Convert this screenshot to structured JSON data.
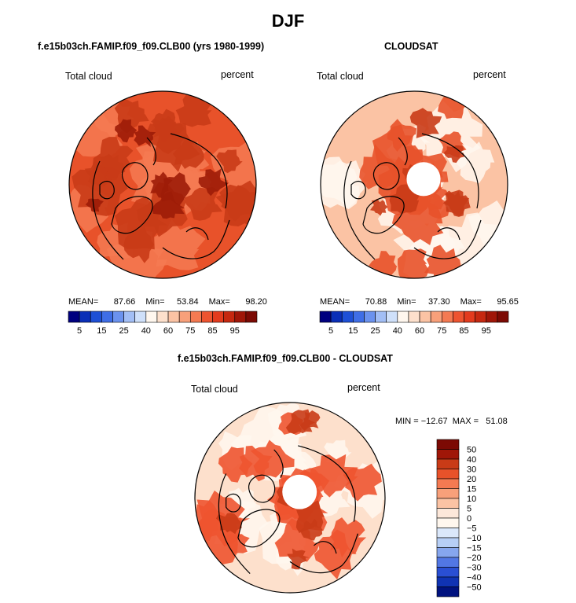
{
  "page_title": "DJF",
  "chart_data": [
    {
      "type": "polar-contour-map",
      "title": "f.e15b03ch.FAMIP.f09_f09.CLB00 (yrs 1980-1999)",
      "variable": "Total cloud",
      "units": "percent",
      "stats": {
        "mean_label": "MEAN=",
        "mean": "87.66",
        "min_label": "Min=",
        "min": "53.84",
        "max_label": "Max=",
        "max": "98.20"
      },
      "colorbar": {
        "tick_labels": [
          "5",
          "15",
          "25",
          "40",
          "60",
          "75",
          "85",
          "95"
        ],
        "colors": [
          "#00007f",
          "#0a2fb7",
          "#1e50d6",
          "#3f6ee6",
          "#6b92ee",
          "#a2bef5",
          "#cfe0fa",
          "#fff7ee",
          "#fde0cc",
          "#fbc3a4",
          "#f8a07a",
          "#f47a52",
          "#ee5430",
          "#e33b1e",
          "#c62810",
          "#a01608",
          "#7c0a04"
        ]
      },
      "field_colors": {
        "background": "#e8522a",
        "dark": "#c93b17",
        "darker": "#9d1c08",
        "light": "#f47a52"
      }
    },
    {
      "type": "polar-contour-map",
      "title": "CLOUDSAT",
      "variable": "Total cloud",
      "units": "percent",
      "stats": {
        "mean_label": "MEAN=",
        "mean": "70.88",
        "min_label": "Min=",
        "min": "37.30",
        "max_label": "Max=",
        "max": "95.65"
      },
      "colorbar": {
        "tick_labels": [
          "5",
          "15",
          "25",
          "40",
          "60",
          "75",
          "85",
          "95"
        ],
        "colors": [
          "#00007f",
          "#0a2fb7",
          "#1e50d6",
          "#3f6ee6",
          "#6b92ee",
          "#a2bef5",
          "#cfe0fa",
          "#fff7ee",
          "#fde0cc",
          "#fbc3a4",
          "#f8a07a",
          "#f47a52",
          "#ee5430",
          "#e33b1e",
          "#c62810",
          "#a01608",
          "#7c0a04"
        ]
      },
      "field_colors": {
        "background": "#fbc3a4",
        "dark": "#e8522a",
        "darker": "#c93b17",
        "light": "#fff7ee"
      }
    },
    {
      "type": "polar-contour-map",
      "title": "f.e15b03ch.FAMIP.f09_f09.CLB00 - CLOUDSAT",
      "variable": "Total cloud",
      "units": "percent",
      "minmax_text": "MIN = −12.67  MAX =   51.08",
      "colorbar": {
        "tick_labels": [
          "50",
          "40",
          "30",
          "20",
          "15",
          "10",
          "5",
          "0",
          "−5",
          "−10",
          "−15",
          "−20",
          "−30",
          "−40",
          "−50"
        ],
        "colors": [
          "#7c0a04",
          "#a01608",
          "#c93b17",
          "#e8522a",
          "#f47a52",
          "#f8a07a",
          "#fbc3a4",
          "#fde8da",
          "#fff7ee",
          "#dbe8fb",
          "#b7cff6",
          "#86a6ee",
          "#5277e4",
          "#2a4fd3",
          "#1033b3",
          "#00127f"
        ]
      },
      "field_colors": {
        "background": "#fde0cc",
        "dark": "#ee5430",
        "darker": "#c93b17",
        "light": "#fff7ee"
      }
    }
  ]
}
